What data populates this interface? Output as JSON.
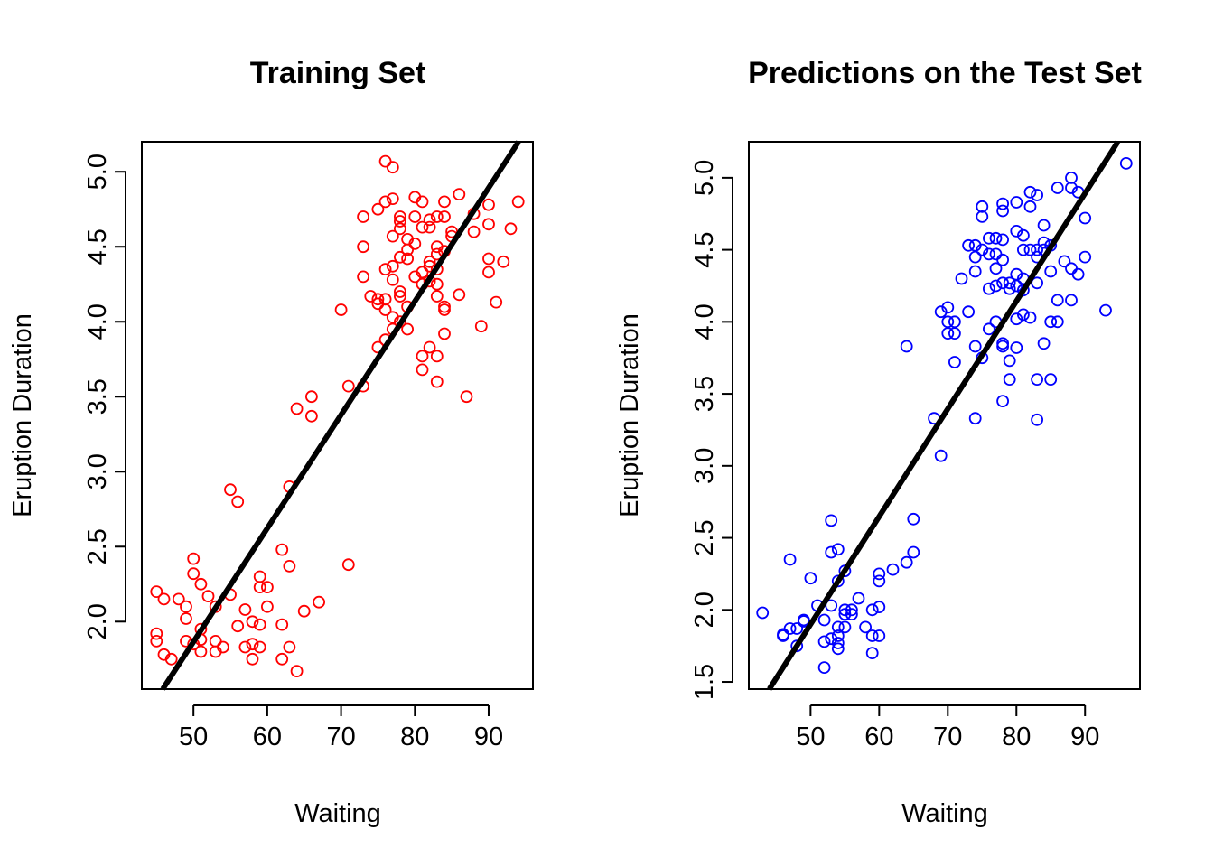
{
  "chart_data": [
    {
      "type": "scatter",
      "title": "Training Set",
      "xlabel": "Waiting",
      "ylabel": "Eruption Duration",
      "xlim": [
        43,
        96
      ],
      "ylim": [
        1.55,
        5.2
      ],
      "xticks": [
        "50",
        "60",
        "70",
        "80",
        "90"
      ],
      "yticks": [
        "2.0",
        "2.5",
        "3.0",
        "3.5",
        "4.0",
        "4.5",
        "5.0"
      ],
      "grid": false,
      "point_color": "#ff0000",
      "line_color": "#000000",
      "fit_line": {
        "intercept": -1.92,
        "slope": 0.0757
      },
      "points": [
        [
          76,
          5.07
        ],
        [
          77,
          5.03
        ],
        [
          80,
          4.83
        ],
        [
          76,
          4.8
        ],
        [
          81,
          4.8
        ],
        [
          84,
          4.8
        ],
        [
          86,
          4.85
        ],
        [
          90,
          4.78
        ],
        [
          94,
          4.8
        ],
        [
          77,
          4.82
        ],
        [
          73,
          4.7
        ],
        [
          75,
          4.75
        ],
        [
          78,
          4.7
        ],
        [
          80,
          4.7
        ],
        [
          82,
          4.68
        ],
        [
          83,
          4.7
        ],
        [
          84,
          4.7
        ],
        [
          88,
          4.72
        ],
        [
          78,
          4.67
        ],
        [
          77,
          4.57
        ],
        [
          78,
          4.62
        ],
        [
          79,
          4.55
        ],
        [
          80,
          4.52
        ],
        [
          81,
          4.63
        ],
        [
          82,
          4.63
        ],
        [
          85,
          4.6
        ],
        [
          88,
          4.6
        ],
        [
          90,
          4.65
        ],
        [
          93,
          4.62
        ],
        [
          73,
          4.5
        ],
        [
          79,
          4.48
        ],
        [
          83,
          4.5
        ],
        [
          84,
          4.47
        ],
        [
          78,
          4.43
        ],
        [
          79,
          4.42
        ],
        [
          82,
          4.4
        ],
        [
          83,
          4.45
        ],
        [
          85,
          4.57
        ],
        [
          76,
          4.35
        ],
        [
          77,
          4.37
        ],
        [
          81,
          4.33
        ],
        [
          82,
          4.37
        ],
        [
          83,
          4.35
        ],
        [
          90,
          4.42
        ],
        [
          92,
          4.4
        ],
        [
          90,
          4.33
        ],
        [
          73,
          4.3
        ],
        [
          77,
          4.28
        ],
        [
          81,
          4.25
        ],
        [
          82,
          4.27
        ],
        [
          83,
          4.25
        ],
        [
          80,
          4.3
        ],
        [
          74,
          4.17
        ],
        [
          75,
          4.15
        ],
        [
          76,
          4.15
        ],
        [
          78,
          4.2
        ],
        [
          78,
          4.17
        ],
        [
          79,
          4.1
        ],
        [
          83,
          4.17
        ],
        [
          84,
          4.08
        ],
        [
          86,
          4.18
        ],
        [
          91,
          4.13
        ],
        [
          70,
          4.08
        ],
        [
          75,
          4.12
        ],
        [
          77,
          4.03
        ],
        [
          78,
          4.0
        ],
        [
          79,
          3.95
        ],
        [
          84,
          4.1
        ],
        [
          76,
          4.08
        ],
        [
          77,
          3.95
        ],
        [
          84,
          3.92
        ],
        [
          89,
          3.97
        ],
        [
          75,
          3.83
        ],
        [
          76,
          3.88
        ],
        [
          82,
          3.83
        ],
        [
          81,
          3.77
        ],
        [
          83,
          3.77
        ],
        [
          81,
          3.68
        ],
        [
          83,
          3.6
        ],
        [
          71,
          3.57
        ],
        [
          73,
          3.57
        ],
        [
          66,
          3.5
        ],
        [
          87,
          3.5
        ],
        [
          64,
          3.42
        ],
        [
          66,
          3.37
        ],
        [
          63,
          2.9
        ],
        [
          55,
          2.88
        ],
        [
          56,
          2.8
        ],
        [
          62,
          2.48
        ],
        [
          71,
          2.38
        ],
        [
          50,
          2.42
        ],
        [
          63,
          2.37
        ],
        [
          50,
          2.32
        ],
        [
          59,
          2.3
        ],
        [
          51,
          2.25
        ],
        [
          59,
          2.23
        ],
        [
          60,
          2.23
        ],
        [
          45,
          2.2
        ],
        [
          46,
          2.15
        ],
        [
          48,
          2.15
        ],
        [
          52,
          2.17
        ],
        [
          55,
          2.18
        ],
        [
          67,
          2.13
        ],
        [
          49,
          2.1
        ],
        [
          53,
          2.1
        ],
        [
          60,
          2.1
        ],
        [
          57,
          2.08
        ],
        [
          65,
          2.07
        ],
        [
          49,
          2.02
        ],
        [
          58,
          2.0
        ],
        [
          59,
          1.98
        ],
        [
          62,
          1.98
        ],
        [
          56,
          1.97
        ],
        [
          51,
          1.95
        ],
        [
          45,
          1.92
        ],
        [
          45,
          1.87
        ],
        [
          49,
          1.87
        ],
        [
          50,
          1.85
        ],
        [
          51,
          1.88
        ],
        [
          53,
          1.87
        ],
        [
          58,
          1.85
        ],
        [
          57,
          1.83
        ],
        [
          59,
          1.83
        ],
        [
          63,
          1.83
        ],
        [
          54,
          1.83
        ],
        [
          46,
          1.78
        ],
        [
          47,
          1.75
        ],
        [
          51,
          1.8
        ],
        [
          53,
          1.8
        ],
        [
          58,
          1.75
        ],
        [
          62,
          1.75
        ],
        [
          64,
          1.67
        ]
      ]
    },
    {
      "type": "scatter",
      "title": "Predictions on the Test Set",
      "xlabel": "Waiting",
      "ylabel": "Eruption Duration",
      "xlim": [
        41,
        98
      ],
      "ylim": [
        1.45,
        5.25
      ],
      "xticks": [
        "50",
        "60",
        "70",
        "80",
        "90"
      ],
      "yticks": [
        "1.5",
        "2.0",
        "2.5",
        "3.0",
        "3.5",
        "4.0",
        "4.5",
        "5.0"
      ],
      "grid": false,
      "point_color": "#0000ff",
      "line_color": "#000000",
      "fit_line": {
        "intercept": -1.84,
        "slope": 0.0748
      },
      "points": [
        [
          96,
          5.1
        ],
        [
          88,
          5.0
        ],
        [
          86,
          4.93
        ],
        [
          88,
          4.93
        ],
        [
          82,
          4.9
        ],
        [
          83,
          4.88
        ],
        [
          89,
          4.9
        ],
        [
          78,
          4.82
        ],
        [
          80,
          4.83
        ],
        [
          75,
          4.8
        ],
        [
          78,
          4.77
        ],
        [
          75,
          4.73
        ],
        [
          82,
          4.8
        ],
        [
          90,
          4.72
        ],
        [
          84,
          4.67
        ],
        [
          80,
          4.63
        ],
        [
          81,
          4.6
        ],
        [
          76,
          4.58
        ],
        [
          77,
          4.58
        ],
        [
          73,
          4.53
        ],
        [
          74,
          4.53
        ],
        [
          78,
          4.57
        ],
        [
          84,
          4.55
        ],
        [
          85,
          4.53
        ],
        [
          82,
          4.5
        ],
        [
          83,
          4.5
        ],
        [
          81,
          4.5
        ],
        [
          74,
          4.45
        ],
        [
          76,
          4.47
        ],
        [
          77,
          4.47
        ],
        [
          78,
          4.43
        ],
        [
          75,
          4.5
        ],
        [
          87,
          4.42
        ],
        [
          90,
          4.45
        ],
        [
          88,
          4.37
        ],
        [
          89,
          4.33
        ],
        [
          77,
          4.37
        ],
        [
          80,
          4.33
        ],
        [
          81,
          4.3
        ],
        [
          84,
          4.5
        ],
        [
          83,
          4.45
        ],
        [
          72,
          4.3
        ],
        [
          74,
          4.35
        ],
        [
          76,
          4.23
        ],
        [
          77,
          4.25
        ],
        [
          78,
          4.27
        ],
        [
          79,
          4.27
        ],
        [
          79,
          4.23
        ],
        [
          80,
          4.25
        ],
        [
          81,
          4.22
        ],
        [
          83,
          4.27
        ],
        [
          85,
          4.35
        ],
        [
          86,
          4.15
        ],
        [
          88,
          4.15
        ],
        [
          69,
          4.07
        ],
        [
          70,
          4.1
        ],
        [
          73,
          4.07
        ],
        [
          70,
          4.0
        ],
        [
          71,
          4.0
        ],
        [
          70,
          3.92
        ],
        [
          71,
          3.92
        ],
        [
          76,
          3.95
        ],
        [
          77,
          4.0
        ],
        [
          80,
          4.02
        ],
        [
          81,
          4.05
        ],
        [
          82,
          4.03
        ],
        [
          85,
          4.0
        ],
        [
          86,
          4.0
        ],
        [
          93,
          4.08
        ],
        [
          64,
          3.83
        ],
        [
          74,
          3.83
        ],
        [
          78,
          3.85
        ],
        [
          78,
          3.83
        ],
        [
          80,
          3.82
        ],
        [
          84,
          3.85
        ],
        [
          71,
          3.72
        ],
        [
          75,
          3.75
        ],
        [
          79,
          3.73
        ],
        [
          79,
          3.6
        ],
        [
          83,
          3.6
        ],
        [
          85,
          3.6
        ],
        [
          78,
          3.45
        ],
        [
          68,
          3.33
        ],
        [
          74,
          3.33
        ],
        [
          83,
          3.32
        ],
        [
          69,
          3.07
        ],
        [
          65,
          2.63
        ],
        [
          53,
          2.62
        ],
        [
          53,
          2.4
        ],
        [
          54,
          2.42
        ],
        [
          65,
          2.4
        ],
        [
          47,
          2.35
        ],
        [
          64,
          2.33
        ],
        [
          62,
          2.28
        ],
        [
          55,
          2.27
        ],
        [
          60,
          2.25
        ],
        [
          50,
          2.22
        ],
        [
          54,
          2.2
        ],
        [
          60,
          2.2
        ],
        [
          57,
          2.08
        ],
        [
          51,
          2.03
        ],
        [
          53,
          2.03
        ],
        [
          55,
          2.0
        ],
        [
          56,
          2.0
        ],
        [
          59,
          2.0
        ],
        [
          60,
          2.02
        ],
        [
          43,
          1.98
        ],
        [
          55,
          1.97
        ],
        [
          56,
          1.97
        ],
        [
          49,
          1.93
        ],
        [
          52,
          1.93
        ],
        [
          49,
          1.92
        ],
        [
          47,
          1.87
        ],
        [
          48,
          1.87
        ],
        [
          54,
          1.88
        ],
        [
          55,
          1.88
        ],
        [
          58,
          1.88
        ],
        [
          46,
          1.83
        ],
        [
          46,
          1.82
        ],
        [
          53,
          1.8
        ],
        [
          54,
          1.82
        ],
        [
          59,
          1.82
        ],
        [
          60,
          1.82
        ],
        [
          52,
          1.78
        ],
        [
          54,
          1.77
        ],
        [
          48,
          1.75
        ],
        [
          54,
          1.73
        ],
        [
          59,
          1.7
        ],
        [
          52,
          1.6
        ]
      ]
    }
  ]
}
